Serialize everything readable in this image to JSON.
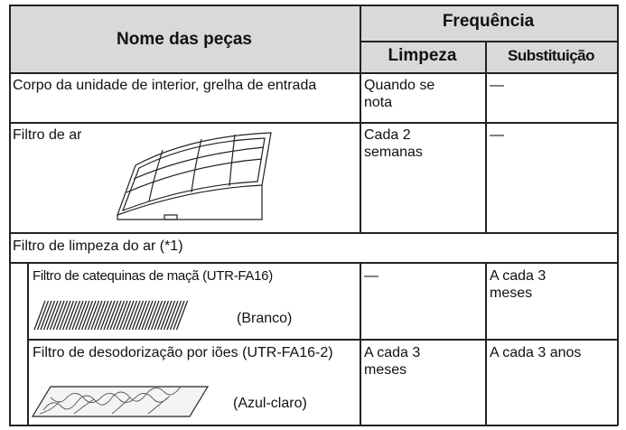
{
  "table": {
    "header": {
      "name": "Nome das peças",
      "frequency": "Frequência",
      "cleaning": "Limpeza",
      "replacement": "Substituição"
    },
    "rows": [
      {
        "name": "Corpo da unidade de interior, grelha de entrada",
        "cleaning": "Quando se nota",
        "replacement": "—"
      },
      {
        "name": "Filtro de ar",
        "cleaning": "Cada 2 semanas",
        "replacement": "—"
      }
    ],
    "group": {
      "name": "Filtro de limpeza do ar (*1)",
      "rows": [
        {
          "name": "Filtro de catequinas de maçã (UTR-FA16)",
          "color": "(Branco)",
          "cleaning": "—",
          "replacement": "A cada 3 meses"
        },
        {
          "name": "Filtro de desodorização por iões (UTR-FA16-2)",
          "color": "(Azul-claro)",
          "cleaning": "A cada 3 meses",
          "replacement": "A cada 3 anos"
        }
      ]
    }
  }
}
